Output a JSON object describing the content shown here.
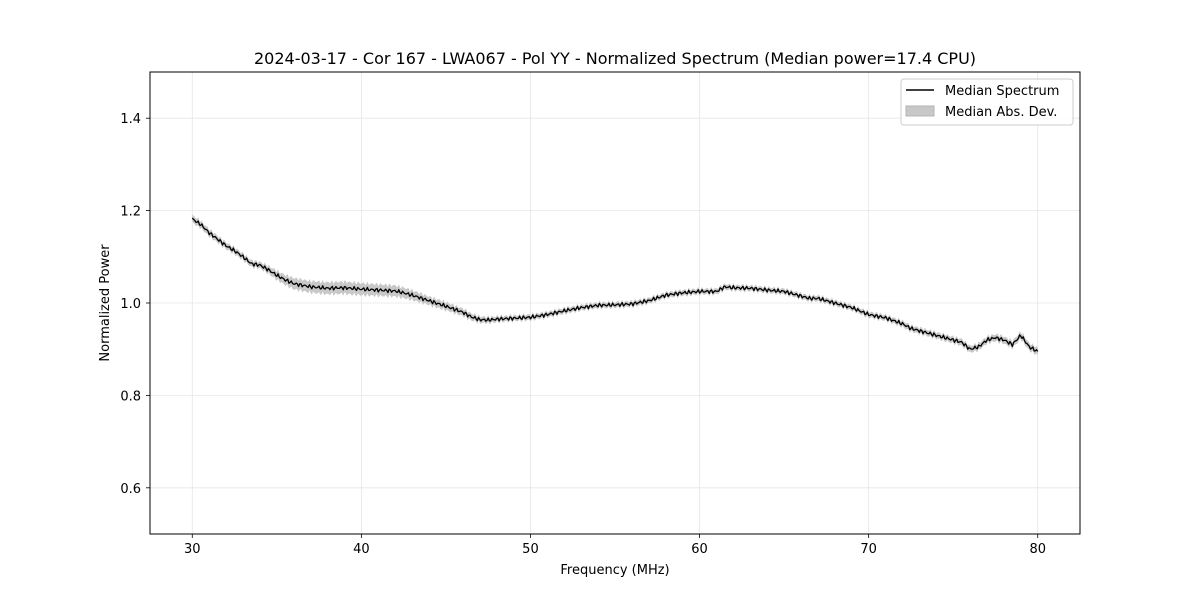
{
  "chart_data": {
    "type": "line",
    "title": "2024-03-17 - Cor 167 - LWA067 - Pol YY - Normalized Spectrum (Median power=17.4 CPU)",
    "xlabel": "Frequency (MHz)",
    "ylabel": "Normalized Power",
    "xlim": [
      27.5,
      82.5
    ],
    "ylim": [
      0.5,
      1.5
    ],
    "x_ticks": [
      30,
      40,
      50,
      60,
      70,
      80
    ],
    "y_ticks": [
      0.6,
      0.8,
      1.0,
      1.2,
      1.4
    ],
    "x_tick_labels": [
      "30",
      "40",
      "50",
      "60",
      "70",
      "80"
    ],
    "y_tick_labels": [
      "0.6",
      "0.8",
      "1.0",
      "1.2",
      "1.4"
    ],
    "grid": true,
    "legend_position": "top-right",
    "legend": [
      "Median Spectrum",
      "Median Abs. Dev."
    ],
    "series": [
      {
        "name": "Median Spectrum",
        "color": "#000000",
        "x": [
          30,
          30.5,
          31,
          31.5,
          32,
          32.5,
          33,
          33.5,
          34,
          34.5,
          35,
          35.5,
          36,
          37,
          38,
          39,
          40,
          41,
          42,
          42.5,
          43,
          44,
          45,
          46,
          46.5,
          47,
          47.5,
          48,
          49,
          50,
          51,
          52,
          53,
          54,
          55,
          56,
          57,
          58,
          59,
          60,
          61,
          61.5,
          62,
          63,
          64,
          65,
          66,
          66.5,
          67,
          68,
          69,
          70,
          71,
          72,
          72.5,
          73,
          74,
          75,
          75.5,
          76,
          76.5,
          77,
          77.5,
          78,
          78.5,
          79,
          79.5,
          80
        ],
        "values": [
          1.182,
          1.17,
          1.152,
          1.138,
          1.124,
          1.113,
          1.1,
          1.085,
          1.082,
          1.072,
          1.06,
          1.05,
          1.042,
          1.035,
          1.032,
          1.033,
          1.03,
          1.028,
          1.026,
          1.022,
          1.017,
          1.005,
          0.993,
          0.98,
          0.97,
          0.964,
          0.963,
          0.965,
          0.967,
          0.969,
          0.975,
          0.983,
          0.99,
          0.995,
          0.996,
          0.998,
          1.005,
          1.017,
          1.022,
          1.025,
          1.025,
          1.035,
          1.033,
          1.032,
          1.028,
          1.025,
          1.015,
          1.01,
          1.01,
          1.0,
          0.99,
          0.975,
          0.968,
          0.955,
          0.945,
          0.94,
          0.93,
          0.92,
          0.915,
          0.9,
          0.905,
          0.92,
          0.925,
          0.92,
          0.91,
          0.93,
          0.905,
          0.895
        ]
      },
      {
        "name": "Median Abs. Dev.",
        "color": "#c8c8c8",
        "x": [
          30,
          32,
          34,
          36,
          38,
          40,
          42,
          44,
          46,
          48,
          50,
          55,
          60,
          65,
          70,
          75,
          80
        ],
        "band": [
          0.008,
          0.007,
          0.007,
          0.012,
          0.013,
          0.013,
          0.012,
          0.009,
          0.008,
          0.006,
          0.006,
          0.006,
          0.006,
          0.006,
          0.006,
          0.007,
          0.008
        ]
      }
    ]
  }
}
